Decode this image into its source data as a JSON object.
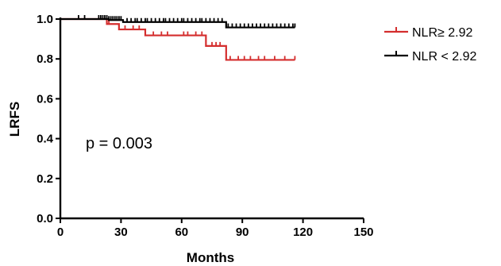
{
  "chart_data": {
    "type": "line",
    "title": "",
    "xlabel": "Months",
    "ylabel": "LRFS",
    "xlim": [
      0,
      150
    ],
    "ylim": [
      0.0,
      1.0
    ],
    "x_ticks": [
      0,
      30,
      60,
      90,
      120,
      150
    ],
    "y_ticks": [
      0.0,
      0.2,
      0.4,
      0.6,
      0.8,
      1.0
    ],
    "x_tick_labels": [
      "0",
      "30",
      "60",
      "90",
      "120",
      "150"
    ],
    "y_tick_labels": [
      "0.0",
      "0.2",
      "0.4",
      "0.6",
      "0.8",
      "1.0"
    ],
    "grid": false,
    "legend_position": "top-right",
    "annotation": "p = 0.003",
    "series": [
      {
        "name": "NLR≥  2.92",
        "color": "#d42e2e",
        "steps": [
          {
            "x": 0,
            "y": 1.0
          },
          {
            "x": 23,
            "y": 0.975
          },
          {
            "x": 29,
            "y": 0.948
          },
          {
            "x": 42,
            "y": 0.918
          },
          {
            "x": 72,
            "y": 0.865
          },
          {
            "x": 82,
            "y": 0.795
          },
          {
            "x": 116,
            "y": 0.795
          }
        ],
        "censors": [
          24,
          32,
          36,
          39,
          46,
          50,
          53,
          61,
          63,
          67,
          70,
          75,
          77,
          79,
          84,
          88,
          91,
          94,
          98,
          101,
          106,
          111,
          116
        ]
      },
      {
        "name": "NLR < 2.92",
        "color": "#000000",
        "steps": [
          {
            "x": 0,
            "y": 1.0
          },
          {
            "x": 24,
            "y": 0.995
          },
          {
            "x": 31,
            "y": 0.985
          },
          {
            "x": 82,
            "y": 0.958
          },
          {
            "x": 116,
            "y": 0.958
          }
        ],
        "censors": [
          9,
          12,
          19,
          20,
          21,
          22,
          23,
          24,
          25,
          26,
          27,
          28,
          29,
          30,
          33,
          35,
          37,
          38,
          40,
          42,
          43,
          45,
          47,
          49,
          51,
          52,
          54,
          56,
          58,
          60,
          61,
          63,
          65,
          67,
          69,
          70,
          72,
          74,
          76,
          78,
          80,
          83,
          85,
          87,
          89,
          91,
          93,
          95,
          97,
          99,
          101,
          103,
          105,
          107,
          109,
          111,
          113,
          115,
          116
        ]
      }
    ]
  }
}
